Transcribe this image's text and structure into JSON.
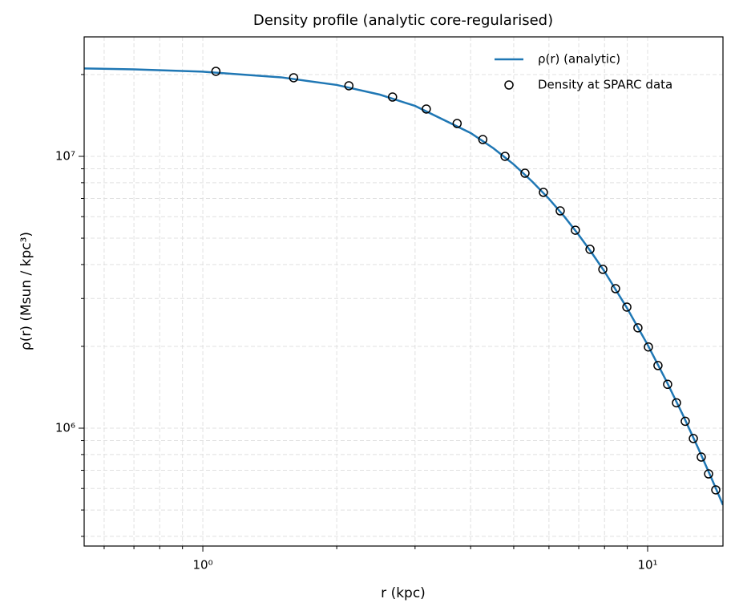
{
  "chart_data": {
    "type": "line",
    "title": "Density profile (analytic core-regularised)",
    "xlabel": "r (kpc)",
    "ylabel": "ρ(r) (Msun / kpc³)",
    "xscale": "log",
    "yscale": "log",
    "grid": true,
    "legend": "upper right",
    "xlim": [
      0.541,
      14.77
    ],
    "ylim": [
      368500,
      27510000
    ],
    "xticks": [
      {
        "value": 1,
        "label": "10⁰"
      },
      {
        "value": 10,
        "label": "10¹"
      }
    ],
    "xticks_minor": [
      0.6,
      0.7,
      0.8,
      0.9,
      2,
      3,
      4,
      5,
      6,
      7,
      8,
      9
    ],
    "yticks": [
      {
        "value": 1000000,
        "label": "10⁶"
      },
      {
        "value": 10000000,
        "label": "10⁷"
      }
    ],
    "yticks_minor": [
      400000,
      500000,
      600000,
      700000,
      800000,
      900000,
      2000000,
      3000000,
      4000000,
      5000000,
      6000000,
      7000000,
      8000000,
      9000000,
      20000000
    ],
    "series": [
      {
        "name": "ρ(r) (analytic)",
        "type": "line",
        "color": "#1f77b4",
        "x": [
          0.541,
          0.7,
          1,
          1.5,
          2,
          2.5,
          3,
          4,
          4.5,
          5,
          5.5,
          6,
          6.5,
          7,
          7.5,
          8,
          9,
          10,
          11,
          12,
          13,
          14,
          14.77
        ],
        "values": [
          21050000,
          20900000,
          20490000,
          19530000,
          18310000,
          16870000,
          15330000,
          12190000,
          10710000,
          9340000,
          8080000,
          6980000,
          6000000,
          5140000,
          4400000,
          3770000,
          2756000,
          2026000,
          1499000,
          1119000,
          842000,
          640000,
          522000
        ]
      },
      {
        "name": "Density at SPARC data",
        "type": "scatter",
        "color": "#000000",
        "x": [
          1.07,
          1.6,
          2.13,
          2.67,
          3.18,
          3.73,
          4.26,
          4.78,
          5.3,
          5.83,
          6.36,
          6.88,
          7.42,
          7.93,
          8.47,
          8.98,
          9.51,
          10.04,
          10.55,
          11.09,
          11.61,
          12.15,
          12.67,
          13.2,
          13.71,
          14.23
        ],
        "values": [
          20550000,
          19460000,
          18180000,
          16530000,
          14930000,
          13210000,
          11530000,
          10000000,
          8670000,
          7370000,
          6300000,
          5350000,
          4550000,
          3840000,
          3260000,
          2790000,
          2340000,
          1990000,
          1700000,
          1450000,
          1240000,
          1060000,
          916000,
          783000,
          679000,
          593000
        ]
      }
    ]
  }
}
